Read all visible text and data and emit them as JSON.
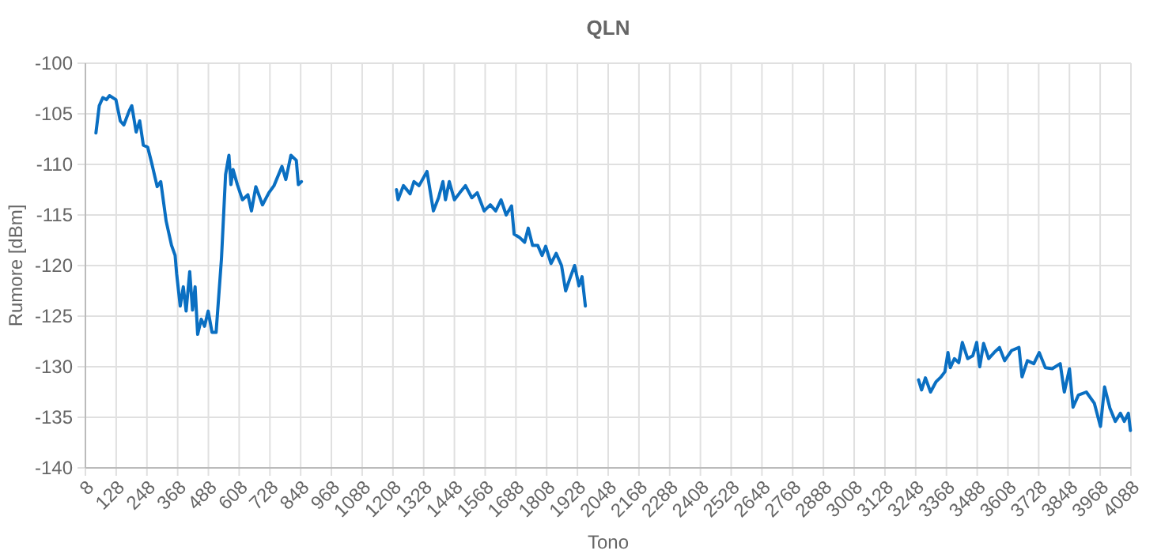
{
  "chart_data": {
    "type": "line",
    "title": "QLN",
    "xlabel": "Tono",
    "ylabel": "Rumore [dBm]",
    "grid": true,
    "marker": "none",
    "line_style": "solid",
    "xlim": [
      8,
      4088
    ],
    "xticks": [
      8,
      128,
      248,
      368,
      488,
      608,
      728,
      848,
      968,
      1088,
      1208,
      1328,
      1448,
      1568,
      1688,
      1808,
      1928,
      2048,
      2168,
      2288,
      2408,
      2528,
      2648,
      2768,
      2888,
      3008,
      3128,
      3248,
      3368,
      3488,
      3608,
      3728,
      3848,
      3968,
      4088
    ],
    "ylim": [
      -140,
      -100
    ],
    "yticks": [
      -140,
      -135,
      -130,
      -125,
      -120,
      -115,
      -110,
      -105,
      -100
    ],
    "series": [
      {
        "color": "#0a6fc2",
        "x": [
          49,
          62,
          76,
          90,
          102,
          127,
          144,
          158,
          179,
          189,
          206,
          220,
          234,
          251,
          267,
          288,
          302,
          323,
          344,
          358,
          364,
          378,
          390,
          401,
          415,
          426,
          436,
          446,
          460,
          473,
          487,
          502,
          518,
          539,
          555,
          568,
          576,
          584,
          601,
          621,
          642,
          656,
          673,
          699,
          724,
          744,
          775,
          790,
          810,
          831,
          839,
          851,
          1000,
          1222,
          1228,
          1249,
          1275,
          1290,
          1310,
          1341,
          1366,
          1386,
          1403,
          1413,
          1428,
          1448,
          1469,
          1491,
          1516,
          1537,
          1564,
          1588,
          1609,
          1630,
          1650,
          1671,
          1681,
          1701,
          1722,
          1736,
          1753,
          1773,
          1790,
          1804,
          1825,
          1845,
          1866,
          1882,
          1897,
          1917,
          1934,
          1946,
          1959,
          2600,
          3259,
          3271,
          3286,
          3306,
          3327,
          3347,
          3362,
          3374,
          3383,
          3399,
          3416,
          3430,
          3451,
          3471,
          3486,
          3498,
          3513,
          3533,
          3554,
          3575,
          3595,
          3622,
          3651,
          3663,
          3684,
          3709,
          3730,
          3754,
          3781,
          3812,
          3828,
          3848,
          3862,
          3883,
          3914,
          3945,
          3969,
          3985,
          4006,
          4027,
          4047,
          4062,
          4078,
          4086
        ],
        "values": [
          -106.9,
          -104.2,
          -103.4,
          -103.6,
          -103.2,
          -103.6,
          -105.7,
          -106.1,
          -104.7,
          -104.2,
          -106.8,
          -105.7,
          -108.1,
          -108.3,
          -109.9,
          -112.2,
          -111.7,
          -115.6,
          -118,
          -119,
          -120.8,
          -124,
          -122.1,
          -124.5,
          -120.6,
          -124.4,
          -122.1,
          -126.8,
          -125.3,
          -126,
          -124.5,
          -126.6,
          -126.6,
          -119.3,
          -111,
          -109.1,
          -112,
          -110.5,
          -112,
          -113.5,
          -113,
          -114.6,
          -112.2,
          -114,
          -112.8,
          -112.1,
          -110.2,
          -111.5,
          -109.1,
          -109.6,
          -112,
          -111.7,
          null,
          -112.5,
          -113.5,
          -112.1,
          -112.9,
          -111.7,
          -112.1,
          -110.7,
          -114.6,
          -113.3,
          -111.7,
          -113.5,
          -111.7,
          -113.5,
          -112.8,
          -112.1,
          -113.3,
          -112.8,
          -114.6,
          -114,
          -114.6,
          -113.5,
          -115,
          -114.1,
          -116.9,
          -117.2,
          -117.7,
          -116.3,
          -118,
          -118,
          -119,
          -118.1,
          -119.8,
          -118.8,
          -120,
          -122.5,
          -121.4,
          -120,
          -122,
          -121.1,
          -124,
          null,
          -131.3,
          -132.3,
          -131.1,
          -132.5,
          -131.5,
          -131,
          -130.5,
          -128.6,
          -130.1,
          -129.2,
          -129.6,
          -127.6,
          -129.2,
          -128.9,
          -127.6,
          -130,
          -127.7,
          -129.2,
          -128.6,
          -128.1,
          -129.4,
          -128.4,
          -128.1,
          -131,
          -129.4,
          -129.7,
          -128.6,
          -130.1,
          -130.2,
          -129.7,
          -132.5,
          -130.2,
          -134,
          -132.8,
          -132.5,
          -133.6,
          -135.9,
          -132,
          -134.1,
          -135.4,
          -134.6,
          -135.4,
          -134.6,
          -136.3
        ]
      }
    ]
  }
}
